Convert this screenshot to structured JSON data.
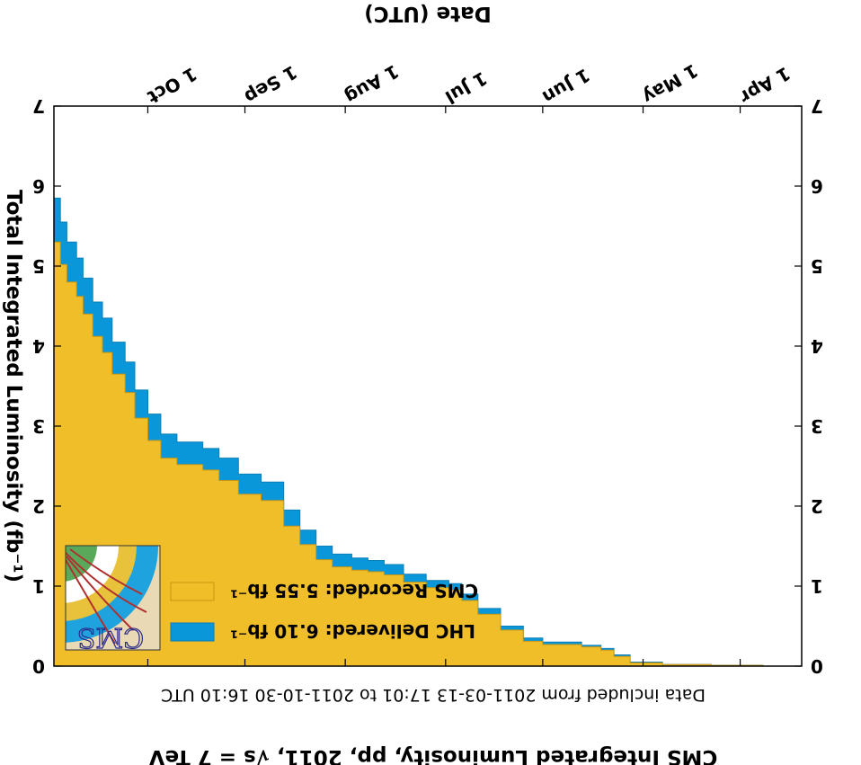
{
  "chart_data": {
    "type": "area",
    "title": "CMS Integrated Luminosity, pp, 2011, √s = 7 TeV",
    "subtitle": "Data included from 2011-03-13 17:01 to 2011-10-30 16:10 UTC",
    "xlabel": "Date (UTC)",
    "ylabel": "Total Integrated Luminosity (fb⁻¹)",
    "ylim": [
      0,
      7
    ],
    "yticks": [
      "0",
      "1",
      "2",
      "3",
      "4",
      "5",
      "6",
      "7"
    ],
    "xlim": [
      "2011-03-13",
      "2011-10-30"
    ],
    "xticks": [
      {
        "date": "2011-04-01",
        "label": "1 Apr"
      },
      {
        "date": "2011-05-01",
        "label": "1 May"
      },
      {
        "date": "2011-06-01",
        "label": "1 Jun"
      },
      {
        "date": "2011-07-01",
        "label": "1 Jul"
      },
      {
        "date": "2011-08-01",
        "label": "1 Aug"
      },
      {
        "date": "2011-09-01",
        "label": "1 Sep"
      },
      {
        "date": "2011-10-01",
        "label": "1 Oct"
      }
    ],
    "series": [
      {
        "name": "LHC Delivered: 6.10 fb⁻¹",
        "color": "#0a97d9",
        "x": [
          "2011-03-13",
          "2011-03-25",
          "2011-04-10",
          "2011-04-25",
          "2011-05-05",
          "2011-05-10",
          "2011-05-14",
          "2011-05-20",
          "2011-05-26",
          "2011-06-01",
          "2011-06-07",
          "2011-06-14",
          "2011-06-21",
          "2011-06-26",
          "2011-06-30",
          "2011-07-07",
          "2011-07-14",
          "2011-07-20",
          "2011-07-25",
          "2011-07-30",
          "2011-08-05",
          "2011-08-10",
          "2011-08-15",
          "2011-08-20",
          "2011-08-27",
          "2011-09-03",
          "2011-09-09",
          "2011-09-14",
          "2011-09-18",
          "2011-09-22",
          "2011-09-27",
          "2011-10-01",
          "2011-10-05",
          "2011-10-08",
          "2011-10-12",
          "2011-10-15",
          "2011-10-18",
          "2011-10-21",
          "2011-10-23",
          "2011-10-26",
          "2011-10-28",
          "2011-10-30"
        ],
        "values": [
          0,
          0.01,
          0.02,
          0.05,
          0.14,
          0.22,
          0.26,
          0.3,
          0.3,
          0.35,
          0.5,
          0.72,
          0.9,
          1.03,
          1.07,
          1.15,
          1.27,
          1.32,
          1.35,
          1.4,
          1.5,
          1.7,
          1.95,
          2.3,
          2.4,
          2.6,
          2.72,
          2.8,
          2.8,
          2.9,
          3.15,
          3.45,
          3.8,
          4.05,
          4.35,
          4.55,
          4.85,
          5.1,
          5.3,
          5.55,
          5.85,
          6.1
        ]
      },
      {
        "name": "CMS Recorded: 5.55 fb⁻¹",
        "color": "#f0be28",
        "x": [
          "2011-03-13",
          "2011-03-25",
          "2011-04-10",
          "2011-04-25",
          "2011-05-05",
          "2011-05-10",
          "2011-05-14",
          "2011-05-20",
          "2011-05-26",
          "2011-06-01",
          "2011-06-07",
          "2011-06-14",
          "2011-06-21",
          "2011-06-26",
          "2011-06-30",
          "2011-07-07",
          "2011-07-14",
          "2011-07-20",
          "2011-07-25",
          "2011-07-30",
          "2011-08-05",
          "2011-08-10",
          "2011-08-15",
          "2011-08-20",
          "2011-08-27",
          "2011-09-03",
          "2011-09-09",
          "2011-09-14",
          "2011-09-18",
          "2011-09-22",
          "2011-09-27",
          "2011-10-01",
          "2011-10-05",
          "2011-10-08",
          "2011-10-12",
          "2011-10-15",
          "2011-10-18",
          "2011-10-21",
          "2011-10-23",
          "2011-10-26",
          "2011-10-28",
          "2011-10-30"
        ],
        "values": [
          0,
          0.01,
          0.02,
          0.04,
          0.12,
          0.2,
          0.24,
          0.27,
          0.27,
          0.31,
          0.45,
          0.65,
          0.82,
          0.95,
          0.98,
          1.05,
          1.14,
          1.18,
          1.2,
          1.24,
          1.33,
          1.52,
          1.75,
          2.07,
          2.15,
          2.32,
          2.45,
          2.52,
          2.52,
          2.6,
          2.82,
          3.1,
          3.42,
          3.65,
          3.92,
          4.12,
          4.4,
          4.62,
          4.8,
          5.02,
          5.3,
          5.55
        ]
      }
    ],
    "grid": false,
    "legend": "lower-left",
    "logo": {
      "text": "CMS"
    }
  }
}
